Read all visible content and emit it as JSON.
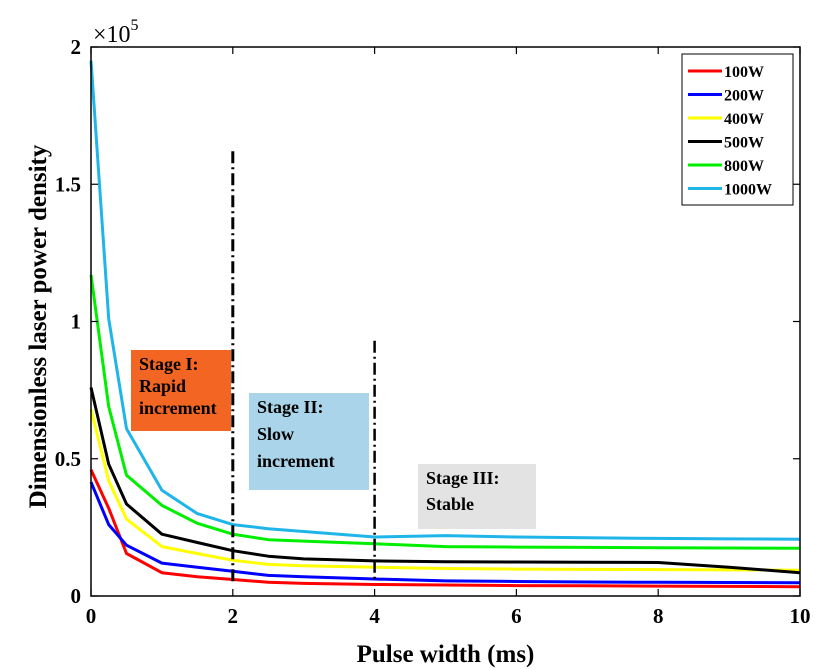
{
  "chart_data": {
    "type": "line",
    "xlabel": "Pulse width (ms)",
    "ylabel": "Dimensionless laser power density",
    "xlim": [
      0,
      10
    ],
    "ylim": [
      0,
      200000
    ],
    "y_exponent_label": "×10",
    "y_exponent_power": "5",
    "x_ticks": [
      0,
      2,
      4,
      6,
      8,
      10
    ],
    "x_tick_labels": [
      "0",
      "2",
      "4",
      "6",
      "8",
      "10"
    ],
    "y_ticks": [
      0,
      50000,
      100000,
      150000,
      200000
    ],
    "y_tick_labels": [
      "0",
      "0.5",
      "1",
      "1.5",
      "2"
    ],
    "legend_position": "top-right",
    "series": [
      {
        "name": "100W",
        "color": "#ff0000",
        "x": [
          0,
          0.25,
          0.5,
          1,
          1.5,
          2,
          2.5,
          3,
          4,
          5,
          6,
          7,
          8,
          9,
          10
        ],
        "y": [
          46000,
          32000,
          15500,
          8500,
          7000,
          6000,
          5000,
          4600,
          4200,
          4000,
          3800,
          3700,
          3600,
          3500,
          3400
        ]
      },
      {
        "name": "200W",
        "color": "#0000ff",
        "x": [
          0,
          0.25,
          0.5,
          1,
          1.5,
          2,
          2.5,
          3,
          4,
          5,
          6,
          7,
          8,
          9,
          10
        ],
        "y": [
          41500,
          26000,
          18500,
          12000,
          10500,
          9000,
          7500,
          7000,
          6200,
          5500,
          5300,
          5100,
          5000,
          4900,
          4800
        ]
      },
      {
        "name": "400W",
        "color": "#ffff00",
        "x": [
          0,
          0.25,
          0.5,
          1,
          1.5,
          2,
          2.5,
          3,
          4,
          5,
          6,
          7,
          8,
          9,
          10
        ],
        "y": [
          68000,
          42000,
          28000,
          18000,
          15500,
          13000,
          11500,
          11000,
          10500,
          10000,
          9800,
          9700,
          9600,
          9500,
          9400
        ]
      },
      {
        "name": "500W",
        "color": "#000000",
        "x": [
          0,
          0.25,
          0.5,
          1,
          1.5,
          2,
          2.5,
          3,
          4,
          5,
          6,
          7,
          8,
          9,
          10
        ],
        "y": [
          76000,
          48000,
          33500,
          22500,
          19500,
          16500,
          14500,
          13500,
          12800,
          12500,
          12400,
          12300,
          12200,
          10500,
          8500
        ]
      },
      {
        "name": "800W",
        "color": "#00ee00",
        "x": [
          0,
          0.25,
          0.5,
          1,
          1.5,
          2,
          2.5,
          3,
          4,
          5,
          6,
          7,
          8,
          9,
          10
        ],
        "y": [
          117000,
          69000,
          44000,
          33000,
          26500,
          22500,
          20500,
          20000,
          19000,
          18000,
          17800,
          17700,
          17600,
          17500,
          17400
        ]
      },
      {
        "name": "1000W",
        "color": "#1fb5e8",
        "x": [
          0,
          0.25,
          0.5,
          1,
          1.5,
          2,
          2.5,
          3,
          4,
          5,
          6,
          7,
          8,
          9,
          10
        ],
        "y": [
          195000,
          101000,
          61000,
          38500,
          30000,
          26000,
          24500,
          23500,
          21500,
          22000,
          21500,
          21200,
          21000,
          20800,
          20700
        ]
      }
    ],
    "vlines": [
      {
        "x": 2,
        "y_top": 162000,
        "style": "dash-dot"
      },
      {
        "x": 4,
        "y_top": 93000,
        "style": "dash-dot"
      }
    ],
    "annotations": [
      {
        "lines": [
          "Stage I:",
          "Rapid",
          "increment"
        ],
        "fill": "#f26522"
      },
      {
        "lines": [
          "Stage II:",
          "Slow",
          "increment"
        ],
        "fill": "#a9d4ea"
      },
      {
        "lines": [
          "Stage III:",
          "Stable"
        ],
        "fill": "#e3e3e3"
      }
    ]
  }
}
